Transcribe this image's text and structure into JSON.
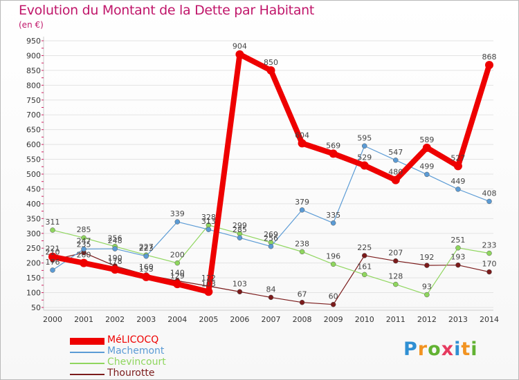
{
  "header": {
    "title": "Evolution du Montant de la Dette par Habitant",
    "unit": "(en €)"
  },
  "logo": {
    "text": "Proxiti",
    "colors": [
      "#2f8fd3",
      "#f29321",
      "#62b232",
      "#e63a5f",
      "#2f8fd3",
      "#f29321",
      "#62b232"
    ]
  },
  "colors": {
    "title": "#c0166a",
    "axis_label": "#333333",
    "grid": "#e3e3e3",
    "axis_tick": "#d01f5f"
  },
  "chart_data": {
    "type": "line",
    "title": "Evolution du Montant de la Dette par Habitant",
    "subtitle": "(en €)",
    "xlabel": "",
    "ylabel": "",
    "x": [
      "2000",
      "2001",
      "2002",
      "2003",
      "2004",
      "2005",
      "2006",
      "2007",
      "2008",
      "2009",
      "2010",
      "2011",
      "2012",
      "2013",
      "2014"
    ],
    "ylim": [
      50,
      950
    ],
    "yticks": [
      50,
      100,
      150,
      200,
      250,
      300,
      350,
      400,
      450,
      500,
      550,
      600,
      650,
      700,
      750,
      800,
      850,
      900,
      950
    ],
    "grid": true,
    "legend_position": "bottom-left",
    "series": [
      {
        "name": "Thourotte",
        "color": "#7b1b1b",
        "width": 1.2,
        "marker": 3.5,
        "values": [
          210,
          235,
          190,
          160,
          140,
          122,
          103,
          84,
          67,
          60,
          225,
          207,
          192,
          193,
          170
        ],
        "labels": [
          "210",
          "235",
          "190",
          "160",
          "140",
          "122",
          "103",
          "84",
          "67",
          "60",
          "225",
          "207",
          "192",
          "193",
          "170"
        ]
      },
      {
        "name": "Chevincourt",
        "color": "#8fd65e",
        "width": 1.2,
        "marker": 3.5,
        "values": [
          311,
          285,
          256,
          227,
          200,
          328,
          299,
          269,
          238,
          196,
          161,
          128,
          93,
          251,
          233
        ],
        "labels": [
          "311",
          "285",
          "256",
          "227",
          "200",
          "328",
          "299",
          "269",
          "238",
          "196",
          "161",
          "128",
          "93",
          "251",
          "233"
        ]
      },
      {
        "name": "Machemont",
        "color": "#5b9bd5",
        "width": 1.2,
        "marker": 3.5,
        "values": [
          176,
          247,
          248,
          223,
          339,
          313,
          285,
          256,
          379,
          335,
          595,
          547,
          499,
          449,
          408
        ],
        "labels": [
          "176",
          "247",
          "248",
          "223",
          "339",
          "313",
          "285",
          "256",
          "379",
          "335",
          "595",
          "547",
          "499",
          "449",
          "408"
        ]
      },
      {
        "name": "MéLICOCQ",
        "color": "#ee0000",
        "width": 8,
        "marker": 6,
        "values": [
          221,
          200,
          178,
          153,
          129,
          103,
          904,
          850,
          604,
          569,
          529,
          480,
          589,
          527,
          868
        ],
        "labels": [
          "221",
          "200",
          "178",
          "153",
          "129",
          "103",
          "904",
          "850",
          "604",
          "569",
          "529",
          "480",
          "589",
          "527",
          "868"
        ]
      }
    ],
    "legend": [
      "MéLICOCQ",
      "Machemont",
      "Chevincourt",
      "Thourotte"
    ]
  }
}
